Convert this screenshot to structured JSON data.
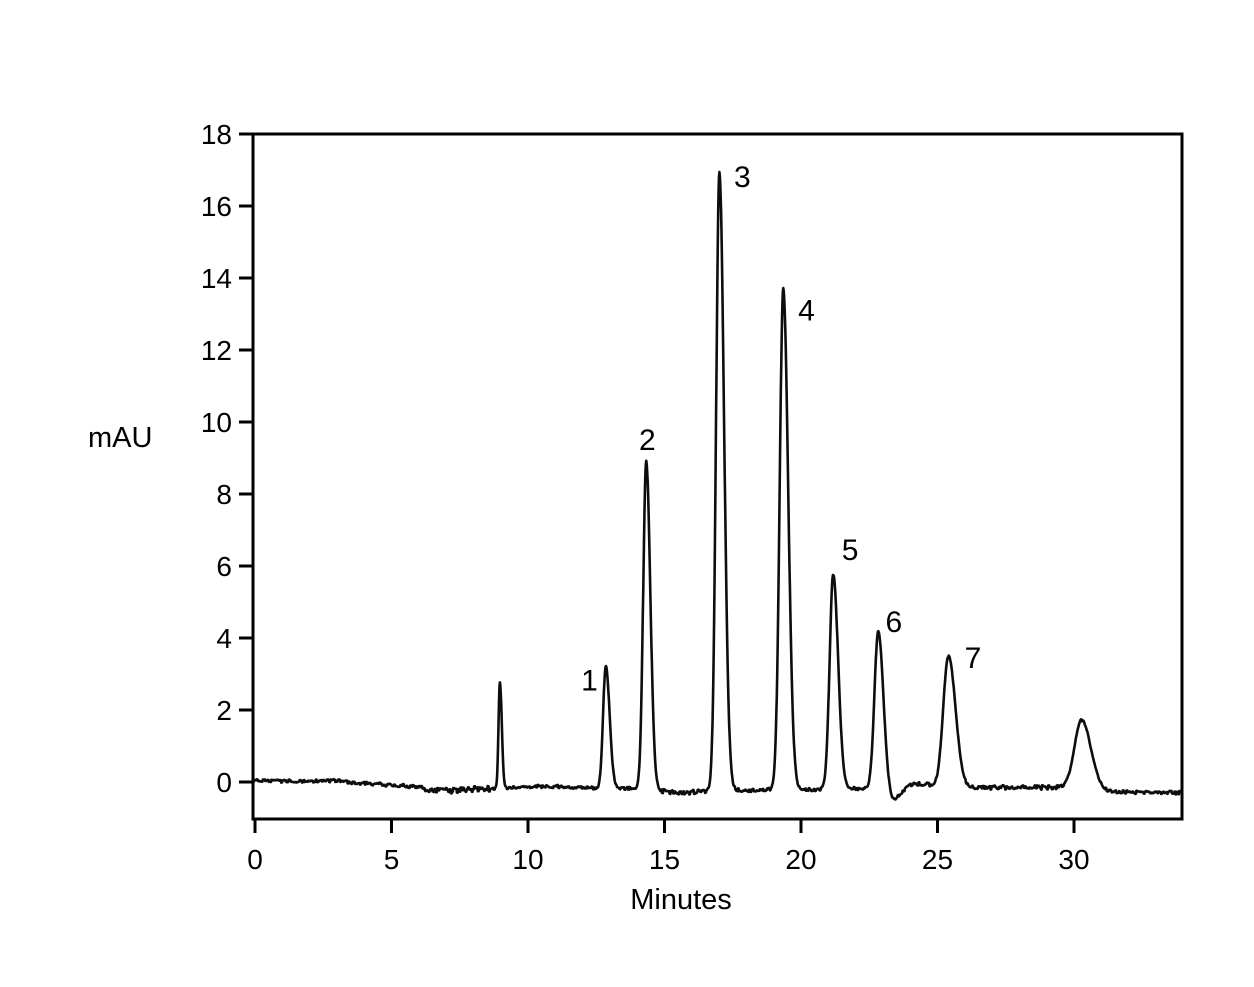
{
  "figure": {
    "background": "#ffffff",
    "trace_color": "#0d0d0d",
    "text_color": "#000000"
  },
  "chart_data": {
    "type": "line",
    "title": "",
    "xlabel": "Minutes",
    "ylabel": "mAU",
    "xlim": [
      0,
      34
    ],
    "ylim": [
      -1,
      18
    ],
    "x_ticks": [
      0,
      5,
      10,
      15,
      20,
      25,
      30
    ],
    "y_ticks": [
      0,
      2,
      4,
      6,
      8,
      10,
      12,
      14,
      16,
      18
    ],
    "grid": false,
    "legend_position": "none",
    "frame": true,
    "series": [
      {
        "name": "chromatogram-trace",
        "peaks": [
          {
            "label": "",
            "rt_min": 8.97,
            "apex_mAU": 2.8,
            "amplitude": 2.95,
            "sigma_left": 0.05,
            "sigma_right": 0.07
          },
          {
            "label": "1",
            "rt_min": 12.85,
            "apex_mAU": 3.2,
            "amplitude": 3.4,
            "sigma_left": 0.1,
            "sigma_right": 0.14,
            "label_t": 12.25,
            "label_v": 2.82
          },
          {
            "label": "2",
            "rt_min": 14.33,
            "apex_mAU": 8.9,
            "amplitude": 9.1,
            "sigma_left": 0.11,
            "sigma_right": 0.15,
            "label_t": 14.37,
            "label_v": 9.5
          },
          {
            "label": "3",
            "rt_min": 17.01,
            "apex_mAU": 16.9,
            "amplitude": 17.15,
            "sigma_left": 0.12,
            "sigma_right": 0.17,
            "label_t": 17.85,
            "label_v": 16.8
          },
          {
            "label": "4",
            "rt_min": 19.35,
            "apex_mAU": 13.7,
            "amplitude": 13.9,
            "sigma_left": 0.13,
            "sigma_right": 0.18,
            "label_t": 20.2,
            "label_v": 13.1
          },
          {
            "label": "5",
            "rt_min": 21.18,
            "apex_mAU": 5.7,
            "amplitude": 5.95,
            "sigma_left": 0.13,
            "sigma_right": 0.18,
            "label_t": 21.8,
            "label_v": 6.45
          },
          {
            "label": "6",
            "rt_min": 22.83,
            "apex_mAU": 4.2,
            "amplitude": 4.45,
            "sigma_left": 0.14,
            "sigma_right": 0.19,
            "label_t": 23.4,
            "label_v": 4.45
          },
          {
            "label": "7",
            "rt_min": 25.4,
            "apex_mAU": 3.5,
            "amplitude": 3.65,
            "sigma_left": 0.19,
            "sigma_right": 0.26,
            "label_t": 26.3,
            "label_v": 3.45
          },
          {
            "label": "",
            "rt_min": 30.28,
            "apex_mAU": 1.7,
            "amplitude": 1.92,
            "sigma_left": 0.26,
            "sigma_right": 0.34
          }
        ],
        "baseline_mAU": [
          [
            0,
            0.05
          ],
          [
            1,
            0.03
          ],
          [
            2.5,
            0.02
          ],
          [
            3,
            0.04
          ],
          [
            3.6,
            -0.03
          ],
          [
            4.5,
            -0.06
          ],
          [
            5.5,
            -0.1
          ],
          [
            6.2,
            -0.18
          ],
          [
            7.2,
            -0.23
          ],
          [
            8,
            -0.18
          ],
          [
            9,
            -0.17
          ],
          [
            10,
            -0.13
          ],
          [
            11.5,
            -0.13
          ],
          [
            12.5,
            -0.18
          ],
          [
            13.5,
            -0.17
          ],
          [
            14.8,
            -0.22
          ],
          [
            15.5,
            -0.27
          ],
          [
            16.2,
            -0.25
          ],
          [
            17,
            -0.22
          ],
          [
            18.2,
            -0.23
          ],
          [
            19.3,
            -0.2
          ],
          [
            20.4,
            -0.21
          ],
          [
            21.2,
            -0.18
          ],
          [
            22.3,
            -0.18
          ],
          [
            23.0,
            -0.3
          ],
          [
            23.35,
            -0.55
          ],
          [
            23.75,
            -0.25
          ],
          [
            23.95,
            -0.1
          ],
          [
            24.1,
            -0.05
          ],
          [
            24.65,
            -0.06
          ],
          [
            25.0,
            -0.14
          ],
          [
            26.2,
            -0.16
          ],
          [
            27.0,
            -0.13
          ],
          [
            28.5,
            -0.13
          ],
          [
            29.5,
            -0.14
          ],
          [
            30.3,
            -0.2
          ],
          [
            31.3,
            -0.27
          ],
          [
            32.5,
            -0.28
          ],
          [
            34,
            -0.3
          ]
        ],
        "noise": {
          "amplitude_mAU": 0.045,
          "hold_samples": 3,
          "zones": [
            {
              "from": 5.8,
              "to": 8.6,
              "gain": 1.7
            },
            {
              "from": 14.6,
              "to": 16.6,
              "gain": 1.5
            },
            {
              "from": 26.8,
              "to": 29.4,
              "gain": 1.4
            }
          ]
        }
      }
    ]
  }
}
